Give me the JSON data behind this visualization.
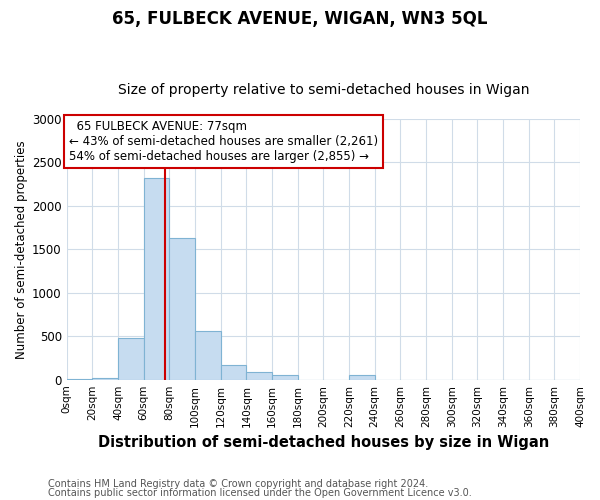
{
  "title": "65, FULBECK AVENUE, WIGAN, WN3 5QL",
  "subtitle": "Size of property relative to semi-detached houses in Wigan",
  "xlabel": "Distribution of semi-detached houses by size in Wigan",
  "ylabel": "Number of semi-detached properties",
  "bin_edges": [
    0,
    20,
    40,
    60,
    80,
    100,
    120,
    140,
    160,
    180,
    200,
    220,
    240,
    260,
    280,
    300,
    320,
    340,
    360,
    380,
    400
  ],
  "counts": [
    5,
    25,
    480,
    2325,
    1630,
    565,
    165,
    85,
    55,
    0,
    0,
    55,
    0,
    0,
    0,
    0,
    0,
    0,
    0,
    0
  ],
  "bar_color": "#c6dcf0",
  "bar_edgecolor": "#7fb3d3",
  "property_size": 77,
  "property_label": "65 FULBECK AVENUE: 77sqm",
  "annotation_line1": "← 43% of semi-detached houses are smaller (2,261)",
  "annotation_line2": "54% of semi-detached houses are larger (2,855) →",
  "red_line_color": "#cc0000",
  "ylim": [
    0,
    3000
  ],
  "xlim": [
    0,
    400
  ],
  "footnote1": "Contains HM Land Registry data © Crown copyright and database right 2024.",
  "footnote2": "Contains public sector information licensed under the Open Government Licence v3.0.",
  "background_color": "#ffffff",
  "plot_bg_color": "#ffffff",
  "grid_color": "#d0dce8",
  "annotation_box_color": "#ffffff",
  "annotation_box_edgecolor": "#cc0000",
  "title_fontsize": 12,
  "subtitle_fontsize": 10,
  "xlabel_fontsize": 10.5,
  "ylabel_fontsize": 8.5,
  "tick_fontsize": 7.5,
  "annotation_fontsize": 8.5,
  "footnote_fontsize": 7
}
